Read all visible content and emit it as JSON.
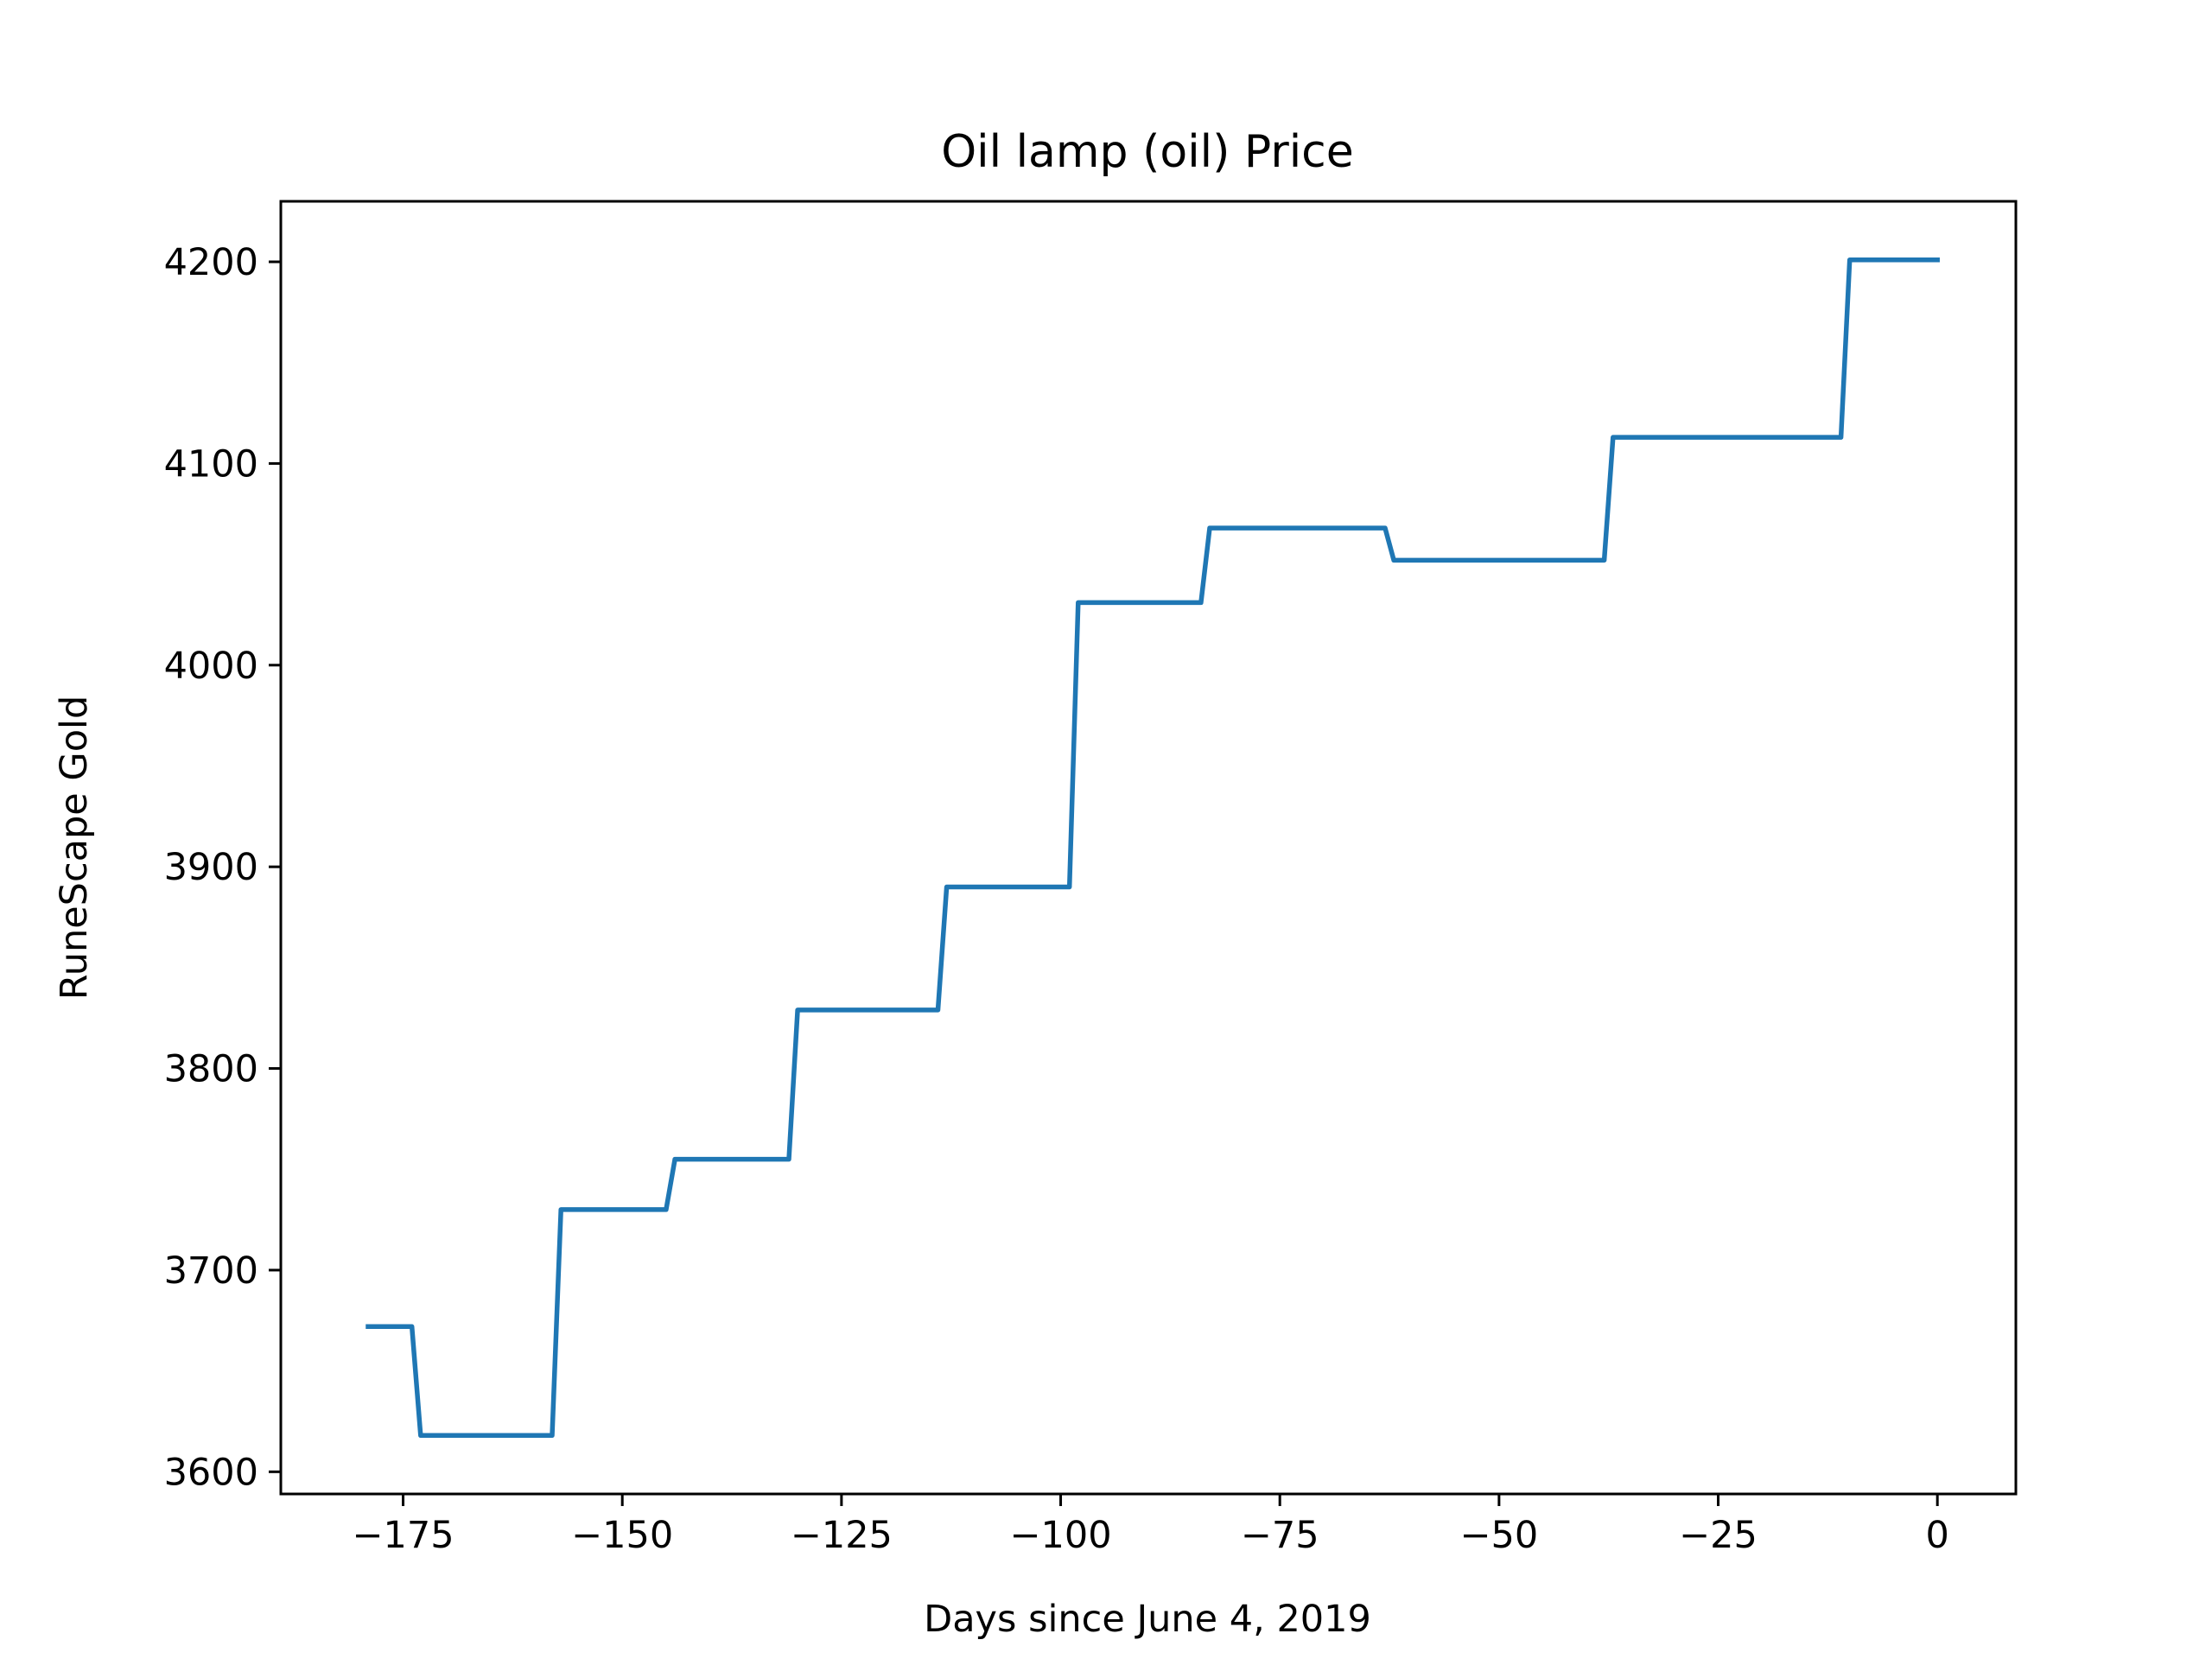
{
  "chart_data": {
    "type": "line",
    "title": "Oil lamp (oil) Price",
    "xlabel": "Days since June 4, 2019",
    "ylabel": "RuneScape Gold",
    "xlim": [
      -188.95,
      8.95
    ],
    "ylim": [
      3589,
      4230
    ],
    "xticks": [
      -175,
      -150,
      -125,
      -100,
      -75,
      -50,
      -25,
      0
    ],
    "xtick_labels": [
      "−175",
      "−150",
      "−125",
      "−100",
      "−75",
      "−50",
      "−25",
      "0"
    ],
    "yticks": [
      3600,
      3700,
      3800,
      3900,
      4000,
      4100,
      4200
    ],
    "ytick_labels": [
      "3600",
      "3700",
      "3800",
      "3900",
      "4000",
      "4100",
      "4200"
    ],
    "grid": false,
    "series": [
      {
        "color": "#1f77b4",
        "x": [
          -179,
          -174,
          -173,
          -158,
          -157,
          -145,
          -144,
          -131,
          -130,
          -114,
          -113,
          -99,
          -98,
          -84,
          -83,
          -63,
          -62,
          -38,
          -37,
          -11,
          -10,
          0
        ],
        "y": [
          3672,
          3672,
          3618,
          3618,
          3730,
          3730,
          3755,
          3755,
          3829,
          3829,
          3890,
          3890,
          4031,
          4031,
          4068,
          4068,
          4052,
          4052,
          4113,
          4113,
          4201,
          4201
        ]
      }
    ]
  }
}
